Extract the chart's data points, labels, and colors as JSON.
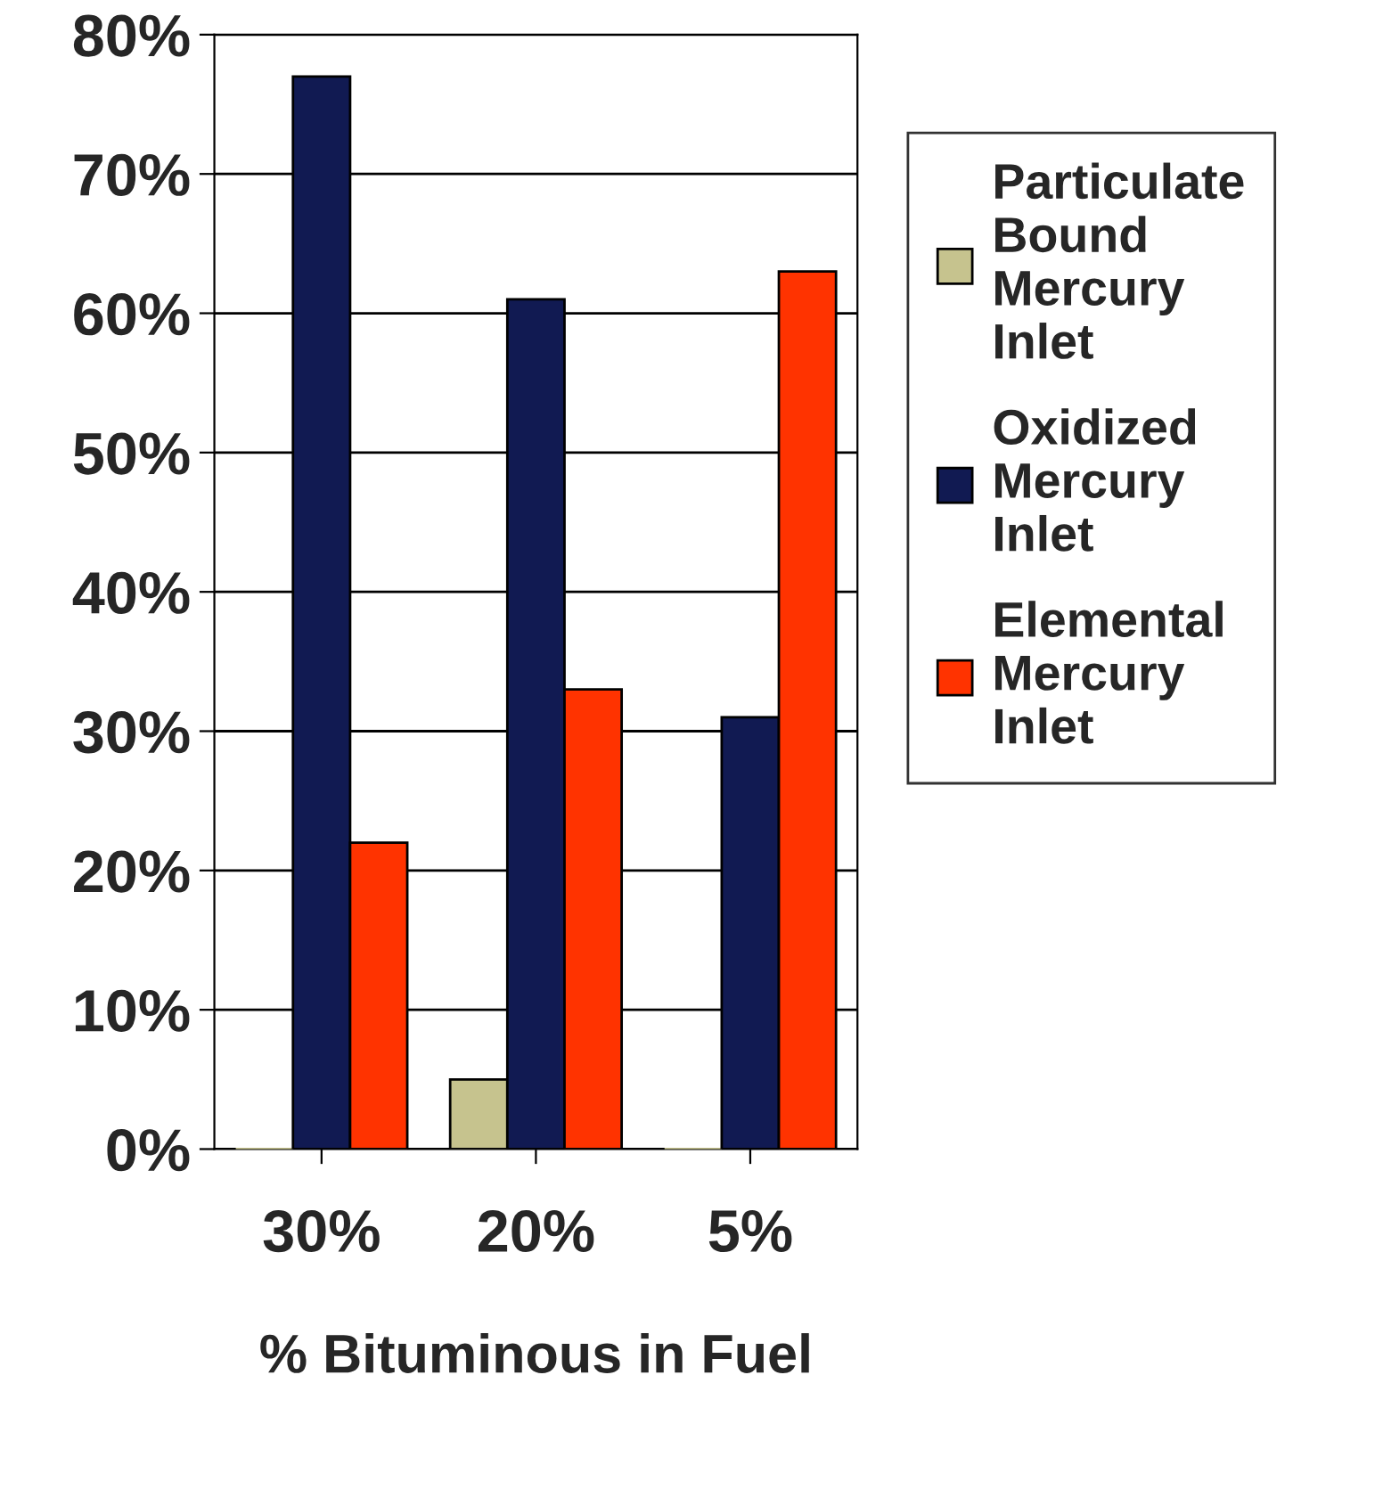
{
  "chart_data": {
    "type": "bar",
    "xlabel": "% Bituminous in Fuel",
    "categories": [
      "30%",
      "20%",
      "5%"
    ],
    "series": [
      {
        "name": "Particulate Bound Mercury Inlet",
        "color": "#c6c38e",
        "values": [
          0,
          5,
          0
        ]
      },
      {
        "name": "Oxidized Mercury Inlet",
        "color": "#111a52",
        "values": [
          77,
          61,
          31
        ]
      },
      {
        "name": "Elemental Mercury Inlet",
        "color": "#ff3300",
        "values": [
          22,
          33,
          63
        ]
      }
    ],
    "ylim": [
      0,
      80
    ],
    "yticks": [
      {
        "value": 0,
        "label": "0%"
      },
      {
        "value": 10,
        "label": "10%"
      },
      {
        "value": 20,
        "label": "20%"
      },
      {
        "value": 30,
        "label": "30%"
      },
      {
        "value": 40,
        "label": "40%"
      },
      {
        "value": 50,
        "label": "50%"
      },
      {
        "value": 60,
        "label": "60%"
      },
      {
        "value": 70,
        "label": "70%"
      },
      {
        "value": 80,
        "label": "80%"
      }
    ],
    "grid": "y",
    "legend": "right"
  }
}
